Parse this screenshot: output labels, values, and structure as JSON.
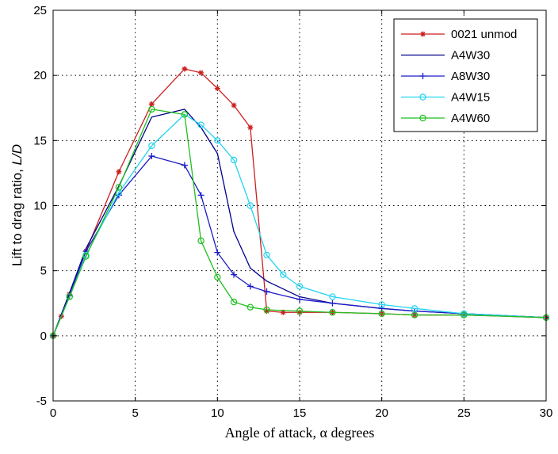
{
  "chart_data": {
    "type": "line",
    "title": "",
    "xlabel": "Angle of attack, α degrees",
    "ylabel_prefix": "Lift to drag ratio, ",
    "ylabel_italic": "L/D",
    "xlim": [
      0,
      30
    ],
    "ylim": [
      -5,
      25
    ],
    "xticks": [
      0,
      5,
      10,
      15,
      20,
      25,
      30
    ],
    "yticks": [
      -5,
      0,
      5,
      10,
      15,
      20,
      25
    ],
    "grid": true,
    "legend_position": "top-right",
    "series": [
      {
        "name": "0021 unmod",
        "color": "#cc1f1f",
        "marker": "star",
        "x": [
          0,
          0.5,
          1,
          2,
          4,
          6,
          8,
          9,
          10,
          11,
          12,
          13,
          14,
          15,
          17,
          20,
          22,
          25,
          30
        ],
        "y": [
          0,
          1.5,
          3.2,
          6.5,
          12.6,
          17.8,
          20.5,
          20.2,
          19.0,
          17.7,
          16.0,
          1.9,
          1.8,
          1.8,
          1.8,
          1.7,
          1.6,
          1.6,
          1.4
        ]
      },
      {
        "name": "A4W30",
        "color": "#00008b",
        "marker": "none",
        "x": [
          0,
          1,
          2,
          4,
          6,
          8,
          9,
          10,
          11,
          12,
          13,
          15,
          17,
          20,
          22,
          25,
          30
        ],
        "y": [
          0,
          3.3,
          6.7,
          11.5,
          16.8,
          17.4,
          16.0,
          14.0,
          8.0,
          5.2,
          4.2,
          3.0,
          2.5,
          2.1,
          1.9,
          1.7,
          1.4
        ]
      },
      {
        "name": "A8W30",
        "color": "#1c1cc8",
        "marker": "plus",
        "x": [
          0,
          1,
          2,
          4,
          6,
          8,
          9,
          10,
          11,
          12,
          13,
          15,
          17,
          20,
          22,
          25,
          30
        ],
        "y": [
          0,
          3.1,
          6.5,
          10.8,
          13.8,
          13.1,
          10.8,
          6.4,
          4.7,
          3.8,
          3.4,
          2.8,
          2.5,
          2.1,
          1.9,
          1.7,
          1.4
        ]
      },
      {
        "name": "A4W15",
        "color": "#22d3f0",
        "marker": "circle",
        "x": [
          0,
          1,
          2,
          4,
          6,
          8,
          9,
          10,
          11,
          12,
          13,
          14,
          15,
          17,
          20,
          22,
          25,
          30
        ],
        "y": [
          0,
          3.0,
          6.2,
          11.0,
          14.6,
          17.0,
          16.2,
          15.0,
          13.5,
          10.0,
          6.2,
          4.7,
          3.8,
          3.0,
          2.4,
          2.1,
          1.7,
          1.4
        ]
      },
      {
        "name": "A4W60",
        "color": "#1fbf1f",
        "marker": "circle",
        "x": [
          0,
          1,
          2,
          4,
          6,
          8,
          9,
          10,
          11,
          12,
          13,
          15,
          17,
          20,
          22,
          25,
          30
        ],
        "y": [
          0,
          3.0,
          6.1,
          11.4,
          17.4,
          17.0,
          7.3,
          4.5,
          2.6,
          2.2,
          2.0,
          1.9,
          1.8,
          1.7,
          1.6,
          1.6,
          1.4
        ]
      }
    ]
  }
}
